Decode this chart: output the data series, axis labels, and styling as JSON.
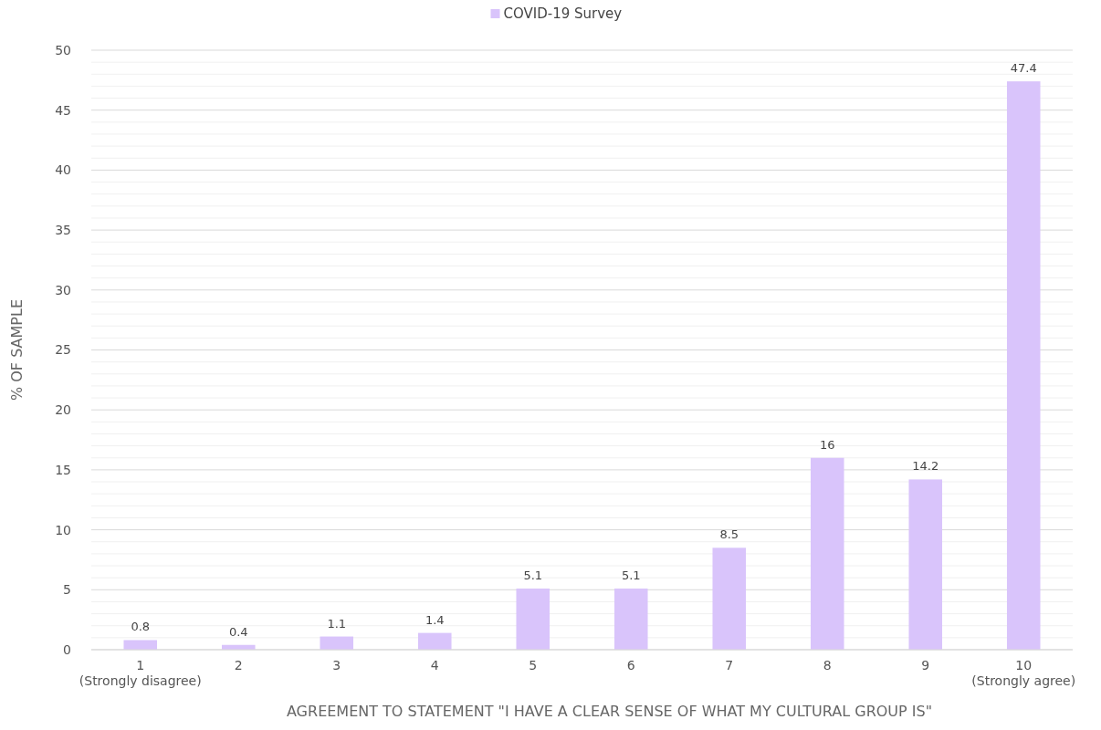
{
  "chart_data": {
    "type": "bar",
    "xlabel": "AGREEMENT TO STATEMENT \"I HAVE A CLEAR SENSE OF WHAT MY CULTURAL GROUP IS\"",
    "ylabel": "% OF SAMPLE",
    "categories": [
      "1 (Strongly disagree)",
      "2",
      "3",
      "4",
      "5",
      "6",
      "7",
      "8",
      "9",
      "10 (Strongly agree)"
    ],
    "series": [
      {
        "name": "COVID-19 Survey",
        "color": "#d9c4fb",
        "values": [
          0.8,
          0.4,
          1.1,
          1.4,
          5.1,
          5.1,
          8.5,
          16,
          14.2,
          47.4
        ]
      }
    ],
    "ylim": [
      0,
      50
    ],
    "yticks": [
      0,
      5,
      10,
      15,
      20,
      25,
      30,
      35,
      40,
      45,
      50
    ],
    "grid": true,
    "legend": "top",
    "data_labels": true
  }
}
